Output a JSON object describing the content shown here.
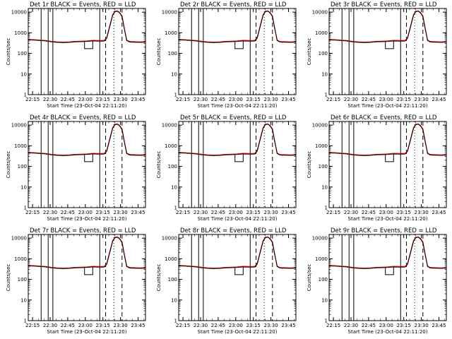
{
  "chart_data": [
    {
      "type": "line",
      "title": "Det 1r BLACK = Events, RED = LLD"
    },
    {
      "type": "line",
      "title": "Det 2r BLACK = Events, RED = LLD"
    },
    {
      "type": "line",
      "title": "Det 3r BLACK = Events, RED = LLD"
    },
    {
      "type": "line",
      "title": "Det 4r BLACK = Events, RED = LLD"
    },
    {
      "type": "line",
      "title": "Det 5r BLACK = Events, RED = LLD"
    },
    {
      "type": "line",
      "title": "Det 6r BLACK = Events, RED = LLD"
    },
    {
      "type": "line",
      "title": "Det 7r BLACK = Events, RED = LLD"
    },
    {
      "type": "line",
      "title": "Det 8r BLACK = Events, RED = LLD"
    },
    {
      "type": "line",
      "title": "Det 9r BLACK = Events, RED = LLD"
    }
  ],
  "shared": {
    "ylabel": "Counts/sec",
    "xlabel": "Start Time (23-Oct-04 22:11:20)",
    "x_ticks": [
      "22:15",
      "22:30",
      "22:45",
      "23:00",
      "23:15",
      "23:30",
      "23:45"
    ],
    "x_tick_minutes": [
      3.67,
      18.67,
      33.67,
      48.67,
      63.67,
      78.67,
      93.67
    ],
    "y_ticks": [
      "1",
      "10",
      "100",
      "1000",
      "10000"
    ],
    "y_scale": "log",
    "xlim_minutes": [
      0,
      100
    ],
    "ylim": [
      1,
      15000
    ],
    "colors": {
      "events": "#000000",
      "lld": "#ff0000"
    },
    "events_series": {
      "minutes": [
        0,
        5,
        10,
        15,
        20,
        25,
        30,
        35,
        40,
        45,
        50,
        55,
        60,
        63,
        65,
        67,
        70,
        72,
        74,
        76,
        78,
        80,
        82,
        84,
        86,
        88,
        90,
        95,
        100
      ],
      "values": [
        450,
        440,
        420,
        400,
        360,
        340,
        330,
        340,
        360,
        370,
        380,
        400,
        390,
        390,
        400,
        550,
        2500,
        7000,
        10500,
        11000,
        9000,
        6000,
        1500,
        420,
        360,
        350,
        350,
        340,
        350
      ]
    },
    "lld_series": {
      "minutes": [
        0,
        5,
        10,
        15,
        20,
        25,
        30,
        35,
        40,
        45,
        50,
        55,
        60,
        63,
        65,
        67,
        70,
        72,
        74,
        76,
        78,
        80,
        82,
        84,
        86,
        88,
        90,
        95,
        100
      ],
      "values": [
        470,
        460,
        440,
        420,
        380,
        360,
        350,
        360,
        380,
        390,
        400,
        430,
        420,
        420,
        430,
        600,
        2800,
        7500,
        11000,
        11500,
        9500,
        6500,
        1600,
        440,
        380,
        370,
        370,
        360,
        370
      ]
    },
    "gap_dip": {
      "minutes": [
        48,
        55
      ],
      "value": 170
    },
    "vertical_solid_minutes": [
      11,
      17,
      21,
      61
    ],
    "vertical_dashed_minutes": [
      66,
      80
    ],
    "vertical_dotted_minutes": [
      73
    ]
  }
}
